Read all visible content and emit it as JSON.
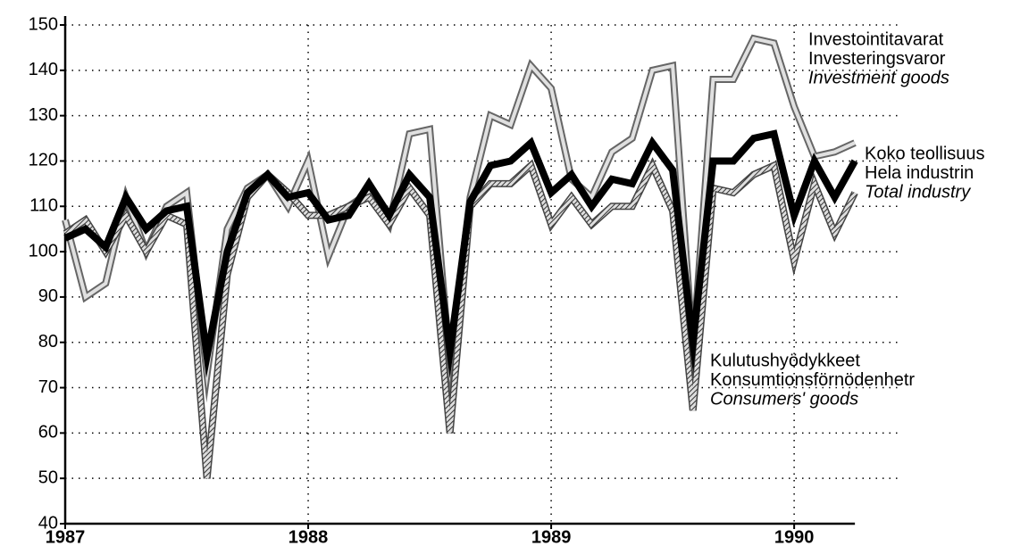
{
  "chart_data": {
    "type": "line",
    "categories": [
      "1987",
      null,
      null,
      null,
      null,
      null,
      null,
      null,
      null,
      null,
      null,
      null,
      "1988",
      null,
      null,
      null,
      null,
      null,
      null,
      null,
      null,
      null,
      null,
      null,
      "1989",
      null,
      null,
      null,
      null,
      null,
      null,
      null,
      null,
      null,
      null,
      null,
      "1990",
      null,
      null,
      null
    ],
    "ylim": [
      40,
      150
    ],
    "yticks": [
      40,
      50,
      60,
      70,
      80,
      90,
      100,
      110,
      120,
      130,
      140,
      150
    ],
    "grid": true,
    "series": [
      {
        "name": [
          "Investointitavarat",
          "Investeringsvaror",
          "Investment goods"
        ],
        "color": "#666666",
        "style": "double",
        "values": [
          107,
          90,
          93,
          112,
          100,
          110,
          113,
          73,
          105,
          114,
          117,
          110,
          120,
          99,
          110,
          113,
          106,
          126,
          127,
          75,
          112,
          130,
          128,
          141,
          136,
          116,
          112,
          122,
          125,
          140,
          141,
          78,
          138,
          138,
          147,
          146,
          132,
          121,
          122,
          124
        ]
      },
      {
        "name": [
          "Kulutushyödykkeet",
          "Konsumtionsförnödenhetr",
          "Consumers' goods"
        ],
        "color": "#444444",
        "style": "hatched",
        "values": [
          104,
          107,
          100,
          108,
          100,
          108,
          106,
          50,
          95,
          112,
          117,
          113,
          108,
          108,
          110,
          112,
          106,
          114,
          108,
          60,
          110,
          115,
          115,
          119,
          106,
          112,
          106,
          110,
          110,
          119,
          109,
          65,
          114,
          113,
          117,
          119,
          98,
          115,
          104,
          113
        ]
      },
      {
        "name": [
          "Koko teollisuus",
          "Hela industrin",
          "Total industry"
        ],
        "color": "#000000",
        "style": "solid",
        "values": [
          103,
          105,
          101,
          112,
          105,
          109,
          110,
          77,
          100,
          113,
          117,
          112,
          113,
          107,
          108,
          115,
          108,
          117,
          112,
          78,
          111,
          119,
          120,
          124,
          113,
          117,
          110,
          116,
          115,
          124,
          118,
          80,
          120,
          120,
          125,
          126,
          108,
          120,
          112,
          120
        ]
      }
    ]
  }
}
